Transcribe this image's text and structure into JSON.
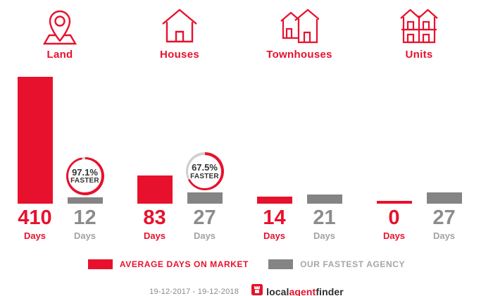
{
  "chart_data": {
    "type": "bar",
    "title": "",
    "categories": [
      "Land",
      "Houses",
      "Townhouses",
      "Units"
    ],
    "series": [
      {
        "name": "AVERAGE DAYS ON MARKET",
        "color": "#e8112d",
        "values": [
          410,
          83,
          14,
          0
        ]
      },
      {
        "name": "OUR FASTEST AGENCY",
        "color": "#848484",
        "values": [
          12,
          27,
          21,
          27
        ]
      }
    ],
    "unit_label": "Days",
    "ylim": [
      0,
      410
    ],
    "grid": false,
    "legend_position": "bottom",
    "badges": [
      {
        "percent_text": "97.1%",
        "word": "FASTER",
        "percent": 97.1
      },
      {
        "percent_text": "67.5%",
        "word": "FASTER",
        "percent": 67.5
      },
      null,
      null
    ]
  },
  "colors": {
    "accent_red": "#e8112d",
    "bar_gray": "#848484",
    "ring_remainder": "#cfcfcf",
    "value_gray": "#8c8c8c"
  },
  "footer": {
    "date_range": "19-12-2017 - 19-12-2018",
    "logo": {
      "part1": "local",
      "part2": "agent",
      "part3": "finder"
    }
  }
}
